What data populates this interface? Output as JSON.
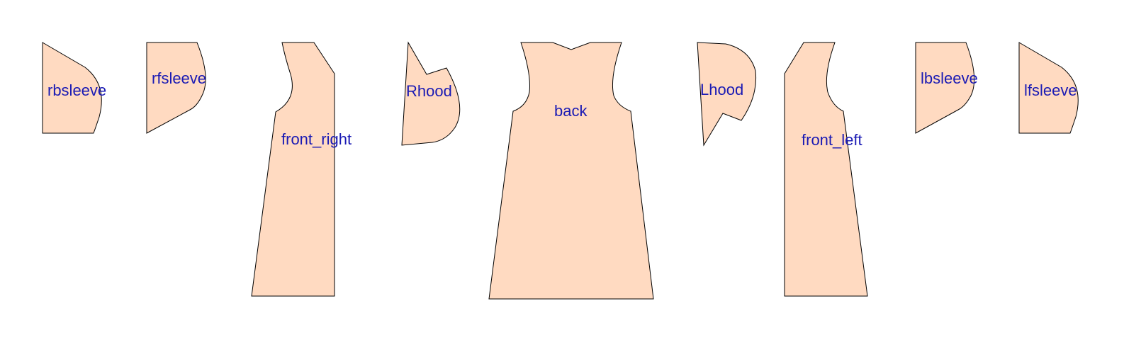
{
  "diagram": {
    "fill_color": "#FFDAC1",
    "outline_color": "#000000",
    "label_color": "#1A1AB4",
    "background_color": "#FFFFFF"
  },
  "panels": [
    {
      "id": "rbsleeve",
      "label": "rbsleeve"
    },
    {
      "id": "rfsleeve",
      "label": "rfsleeve"
    },
    {
      "id": "front_right",
      "label": "front_right"
    },
    {
      "id": "rhood",
      "label": "Rhood"
    },
    {
      "id": "back",
      "label": "back"
    },
    {
      "id": "lhood",
      "label": "Lhood"
    },
    {
      "id": "front_left",
      "label": "front_left"
    },
    {
      "id": "lbsleeve",
      "label": "lbsleeve"
    },
    {
      "id": "lfsleeve",
      "label": "lfsleeve"
    }
  ]
}
